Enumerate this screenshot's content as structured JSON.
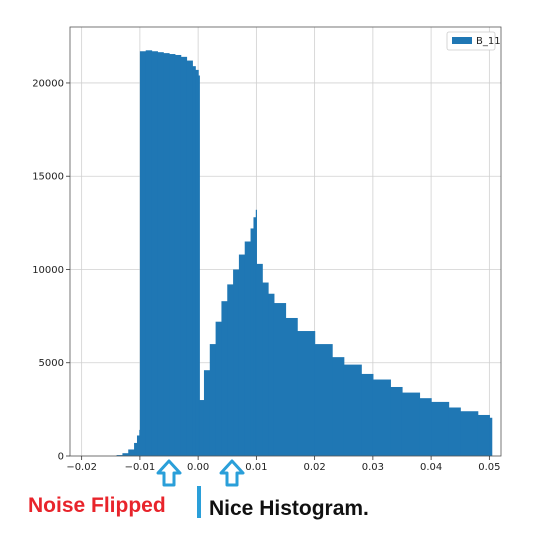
{
  "chart_data": {
    "type": "bar",
    "title": "",
    "xlabel": "",
    "ylabel": "",
    "xlim": [
      -0.022,
      0.052
    ],
    "ylim": [
      0,
      23000
    ],
    "x_ticks": [
      -0.02,
      -0.01,
      0.0,
      0.01,
      0.02,
      0.03,
      0.04,
      0.05
    ],
    "x_tick_labels": [
      "−0.02",
      "−0.01",
      "0.00",
      "0.01",
      "0.02",
      "0.03",
      "0.04",
      "0.05"
    ],
    "y_ticks": [
      0,
      5000,
      10000,
      15000,
      20000
    ],
    "y_tick_labels": [
      "0",
      "5000",
      "10000",
      "15000",
      "20000"
    ],
    "grid": true,
    "legend_position": "top-right",
    "bar_color": "#1f77b4",
    "series": [
      {
        "name": "B_11",
        "x": [
          -0.015,
          -0.014,
          -0.013,
          -0.012,
          -0.011,
          -0.0105,
          -0.0101,
          -0.01,
          -0.009,
          -0.008,
          -0.007,
          -0.006,
          -0.005,
          -0.004,
          -0.003,
          -0.002,
          -0.001,
          -0.0005,
          0.0,
          0.0002,
          0.001,
          0.002,
          0.003,
          0.004,
          0.005,
          0.006,
          0.007,
          0.008,
          0.009,
          0.0095,
          0.0099,
          0.01,
          0.011,
          0.012,
          0.013,
          0.015,
          0.017,
          0.02,
          0.023,
          0.025,
          0.028,
          0.03,
          0.033,
          0.035,
          0.038,
          0.04,
          0.043,
          0.045,
          0.048,
          0.05
        ],
        "values": [
          0,
          50,
          150,
          350,
          700,
          1100,
          1400,
          21700,
          21750,
          21700,
          21650,
          21600,
          21550,
          21500,
          21400,
          21200,
          20900,
          20700,
          20400,
          3000,
          4600,
          6000,
          7200,
          8300,
          9200,
          10000,
          10800,
          11500,
          12200,
          12800,
          13200,
          10300,
          9300,
          8700,
          8200,
          7400,
          6700,
          6000,
          5300,
          4900,
          4400,
          4100,
          3700,
          3400,
          3100,
          2900,
          2600,
          2400,
          2200,
          2050
        ]
      }
    ]
  },
  "annotations": {
    "left_label": "Noise Flipped",
    "right_label": "Nice Histogram.",
    "arrow_color": "#2a9fd9",
    "arrow_icon": "up-arrow-icon"
  }
}
